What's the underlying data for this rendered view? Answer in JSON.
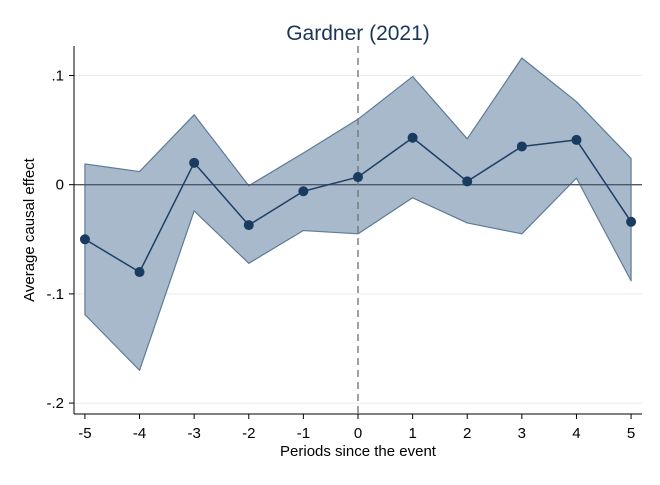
{
  "chart_data": {
    "type": "line",
    "title": "Gardner (2021)",
    "xlabel": "Periods since the event",
    "ylabel": "Average causal effect",
    "x": [
      -5,
      -4,
      -3,
      -2,
      -1,
      0,
      1,
      2,
      3,
      4,
      5
    ],
    "x_tick_labels": [
      "-5",
      "-4",
      "-3",
      "-2",
      "-1",
      "0",
      "1",
      "2",
      "3",
      "4",
      "5"
    ],
    "y_ticks": [
      -0.2,
      -0.1,
      0,
      0.1
    ],
    "y_tick_labels": [
      "-.2",
      "-.1",
      "0",
      ".1"
    ],
    "xlim": [
      -5.2,
      5.2
    ],
    "ylim": [
      -0.21,
      0.127
    ],
    "series": [
      {
        "values": [
          -0.05,
          -0.08,
          0.02,
          -0.037,
          -0.006,
          0.007,
          0.043,
          0.003,
          0.035,
          0.041,
          -0.034
        ],
        "ci_lower": [
          -0.119,
          -0.17,
          -0.024,
          -0.072,
          -0.042,
          -0.045,
          -0.012,
          -0.035,
          -0.045,
          0.006,
          -0.088
        ],
        "ci_upper": [
          0.019,
          0.012,
          0.064,
          -0.001,
          0.029,
          0.06,
          0.099,
          0.042,
          0.116,
          0.076,
          0.024
        ]
      }
    ],
    "reference_lines": {
      "horizontal_y": 0,
      "vertical_x": 0,
      "vertical_style": "dashed"
    },
    "grid": "horizontal",
    "colors": {
      "line": "#1f3f66",
      "marker": "#1a3b60",
      "ci_fill": "#a7b9cb",
      "ci_edge": "#5e7b96",
      "title": "#1c3557",
      "refline": "#4a5a6b",
      "gridline": "#eaeaea"
    }
  }
}
